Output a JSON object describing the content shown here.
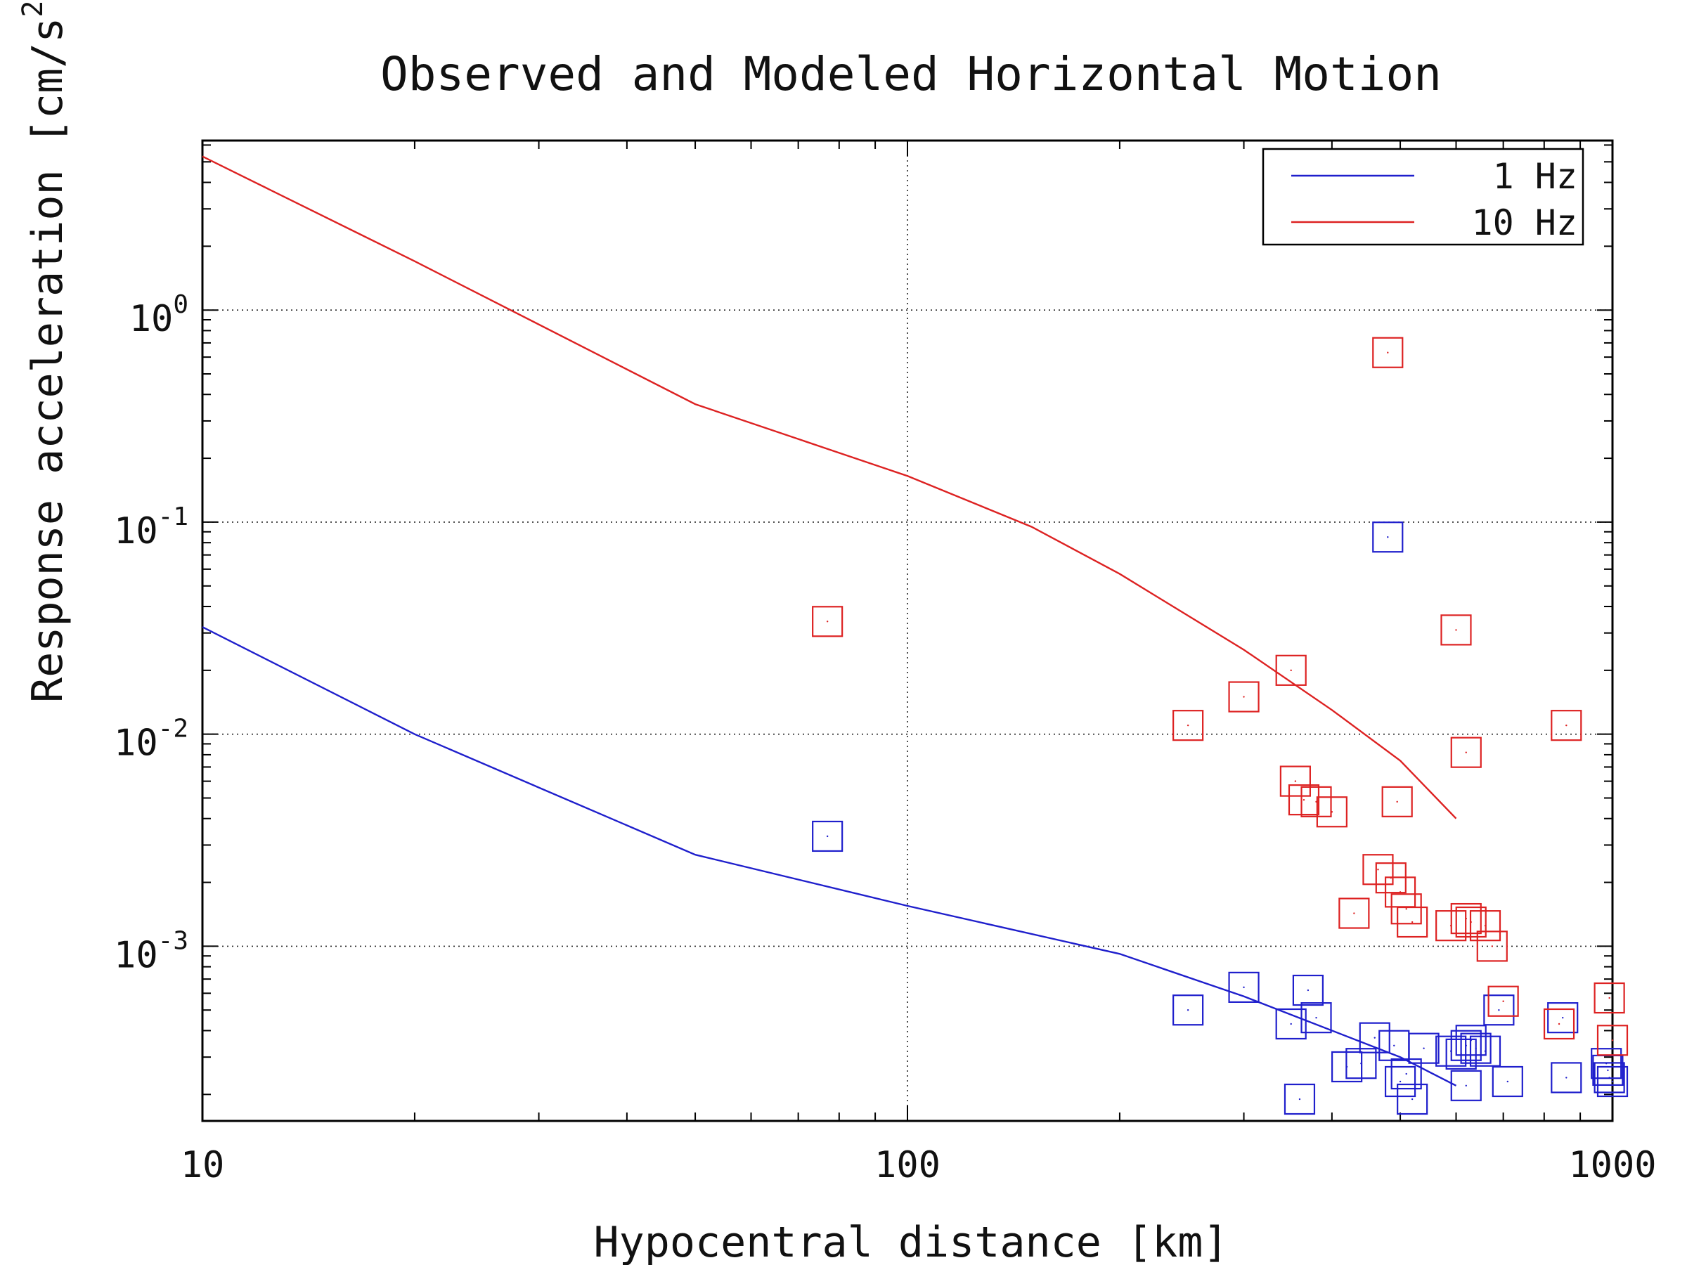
{
  "chart_data": {
    "type": "scatter",
    "title": "Observed and Modeled Horizontal Motion",
    "xlabel": "Hypocentral distance [km]",
    "ylabel_main": "Response acceleration [cm/s",
    "ylabel_sup": "2",
    "ylabel_close": "]",
    "x_scale": "log",
    "y_scale": "log",
    "xlim": [
      10,
      1000
    ],
    "ylim": [
      0.00015,
      6.3
    ],
    "x_ticks": [
      {
        "value": 10,
        "label": "10"
      },
      {
        "value": 100,
        "label": "100"
      },
      {
        "value": 1000,
        "label": "1000"
      }
    ],
    "y_ticks": [
      {
        "value": 1,
        "base": "10",
        "exp": "0"
      },
      {
        "value": 0.1,
        "base": "10",
        "exp": "-1"
      },
      {
        "value": 0.01,
        "base": "10",
        "exp": "-2"
      },
      {
        "value": 0.001,
        "base": "10",
        "exp": "-3"
      }
    ],
    "grid": "dotted",
    "legend": {
      "placement": "top-right",
      "entries": [
        {
          "label": "1 Hz",
          "color": "#1f1fcc"
        },
        {
          "label": "10 Hz",
          "color": "#dd2222"
        }
      ]
    },
    "series": [
      {
        "name": "1 Hz",
        "color": "#1f1fcc",
        "model_line": {
          "x": [
            10,
            20,
            50,
            100,
            200,
            300,
            500,
            600
          ],
          "y": [
            0.032,
            0.01,
            0.0027,
            0.00155,
            0.00092,
            0.00058,
            0.0003,
            0.00022
          ]
        },
        "observed": {
          "x": [
            77,
            250,
            300,
            350,
            360,
            370,
            380,
            420,
            440,
            460,
            480,
            490,
            500,
            510,
            520,
            540,
            590,
            610,
            620,
            620,
            630,
            640,
            660,
            690,
            710,
            850,
            860,
            980,
            985,
            990,
            1000
          ],
          "y": [
            0.0033,
            0.0005,
            0.00064,
            0.00043,
            0.00019,
            0.00062,
            0.00046,
            0.00027,
            0.00028,
            0.00037,
            0.085,
            0.00034,
            0.00023,
            0.00025,
            0.00019,
            0.00033,
            0.00032,
            0.00031,
            0.00034,
            0.00022,
            0.00036,
            0.00033,
            0.00032,
            0.0005,
            0.00023,
            0.00046,
            0.00024,
            0.00028,
            0.00026,
            0.00024,
            0.00023
          ]
        }
      },
      {
        "name": "10 Hz",
        "color": "#dd2222",
        "model_line": {
          "x": [
            10,
            20,
            50,
            100,
            150,
            200,
            300,
            400,
            500,
            600
          ],
          "y": [
            5.3,
            1.7,
            0.36,
            0.165,
            0.095,
            0.057,
            0.025,
            0.013,
            0.0075,
            0.004
          ]
        },
        "observed": {
          "x": [
            77,
            250,
            300,
            350,
            355,
            365,
            380,
            400,
            430,
            465,
            480,
            485,
            495,
            500,
            510,
            520,
            590,
            600,
            620,
            620,
            630,
            660,
            675,
            700,
            840,
            860,
            990,
            1000
          ],
          "y": [
            0.034,
            0.011,
            0.015,
            0.02,
            0.006,
            0.0049,
            0.0048,
            0.0043,
            0.00143,
            0.0023,
            0.63,
            0.0021,
            0.0048,
            0.0018,
            0.0015,
            0.0013,
            0.00125,
            0.031,
            0.0082,
            0.00135,
            0.0013,
            0.00125,
            0.001,
            0.00055,
            0.00043,
            0.011,
            0.00057,
            0.00036
          ]
        }
      }
    ]
  }
}
